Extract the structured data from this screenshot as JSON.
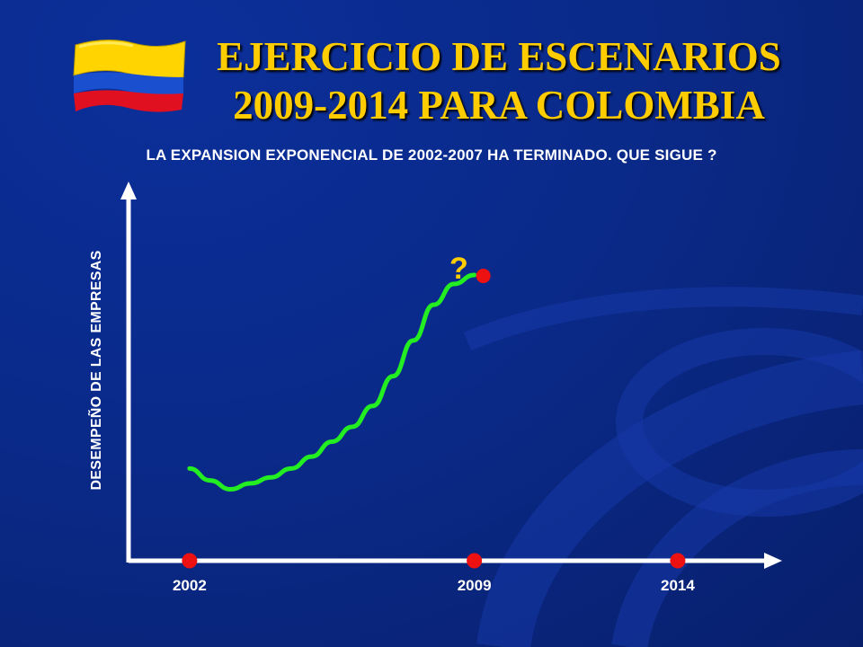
{
  "title": {
    "line1": "EJERCICIO DE ESCENARIOS",
    "line2": "2009-2014 PARA  COLOMBIA"
  },
  "subtitle": "LA EXPANSION EXPONENCIAL DE 2002-2007 HA TERMINADO. QUE SIGUE ?",
  "flag": {
    "name": "colombia-flag-icon",
    "colors": [
      "#ffd400",
      "#1a4fd0",
      "#e01020"
    ]
  },
  "colors": {
    "title": "#ffcc00",
    "curve": "#22ee22",
    "marker": "#ee1111",
    "axis": "#ffffff",
    "background": "#0a2a8a"
  },
  "chart_data": {
    "type": "line",
    "ylabel": "DESEMPEÑO DE LAS EMPRESAS",
    "xlabel": "",
    "x_ticks": [
      "2002",
      "2009",
      "2014"
    ],
    "x_markers": [
      2002,
      2009,
      2014
    ],
    "end_marker_label": "?",
    "series": [
      {
        "values_shape": "relative performance (no numeric scale printed)",
        "x": [
          2002.0,
          2002.5,
          2003.0,
          2003.5,
          2004.0,
          2004.5,
          2005.0,
          2005.5,
          2006.0,
          2006.5,
          2007.0,
          2007.5,
          2008.0,
          2008.5,
          2009.0
        ],
        "y": [
          0.31,
          0.27,
          0.24,
          0.26,
          0.28,
          0.31,
          0.35,
          0.4,
          0.45,
          0.52,
          0.62,
          0.74,
          0.86,
          0.93,
          0.96
        ]
      }
    ],
    "xlim": [
      2000.5,
      2016.3
    ],
    "ylim": [
      0,
      1.25
    ]
  }
}
